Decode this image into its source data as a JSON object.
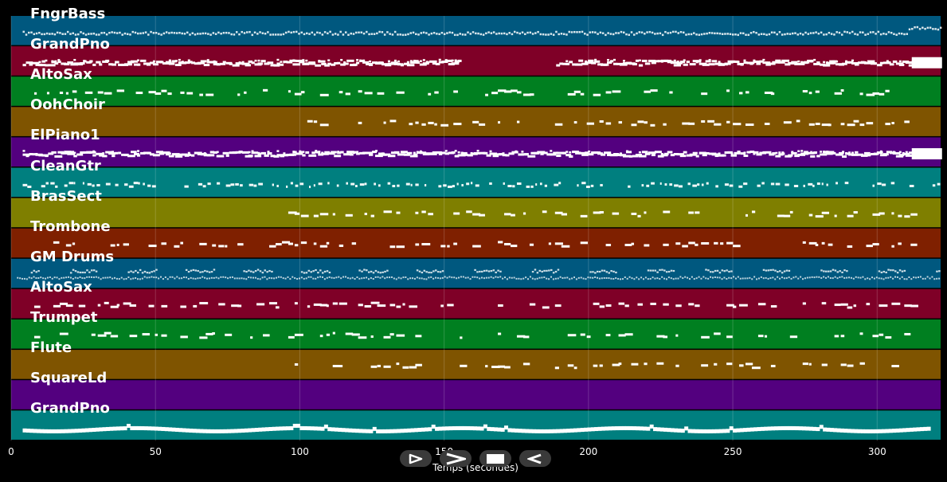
{
  "tracks": [
    {
      "name": "FngrBass",
      "color": "#00587f",
      "density": "dense-thin",
      "notes": "full"
    },
    {
      "name": "GrandPno",
      "color": "#7f0027",
      "density": "dense-thick",
      "notes": "gap"
    },
    {
      "name": "AltoSax",
      "color": "#007f20",
      "density": "sparse",
      "notes": "full"
    },
    {
      "name": "OohChoir",
      "color": "#7f5400",
      "density": "sparse",
      "notes": "late"
    },
    {
      "name": "ElPiano1",
      "color": "#53007f",
      "density": "dense-thick",
      "notes": "full"
    },
    {
      "name": "CleanGtr",
      "color": "#007f7f",
      "density": "medium",
      "notes": "full"
    },
    {
      "name": "BrasSect",
      "color": "#7f7f00",
      "density": "sparse",
      "notes": "late"
    },
    {
      "name": "Trombone",
      "color": "#7f2000",
      "density": "sparse",
      "notes": "full"
    },
    {
      "name": "GM Drums",
      "color": "#00587f",
      "density": "drums",
      "notes": "full"
    },
    {
      "name": "AltoSax",
      "color": "#7f0027",
      "density": "sparse",
      "notes": "full"
    },
    {
      "name": "Trumpet",
      "color": "#007f20",
      "density": "sparse",
      "notes": "full"
    },
    {
      "name": "Flute",
      "color": "#7f5400",
      "density": "sparse",
      "notes": "late"
    },
    {
      "name": "SquareLd",
      "color": "#53007f",
      "density": "none",
      "notes": "none"
    },
    {
      "name": "GrandPno",
      "color": "#007f7f",
      "density": "line",
      "notes": "full"
    }
  ],
  "x_axis": {
    "title": "Temps (secondes)",
    "min": 0,
    "max": 322,
    "ticks": [
      "0",
      "50",
      "100",
      "150",
      "200",
      "250",
      "300"
    ]
  },
  "transport": [
    {
      "name": "play-from-start-button",
      "icon": "play-outline-icon"
    },
    {
      "name": "play-button",
      "icon": "play-icon"
    },
    {
      "name": "stop-button",
      "icon": "stop-icon"
    },
    {
      "name": "rewind-button",
      "icon": "rewind-icon"
    }
  ]
}
